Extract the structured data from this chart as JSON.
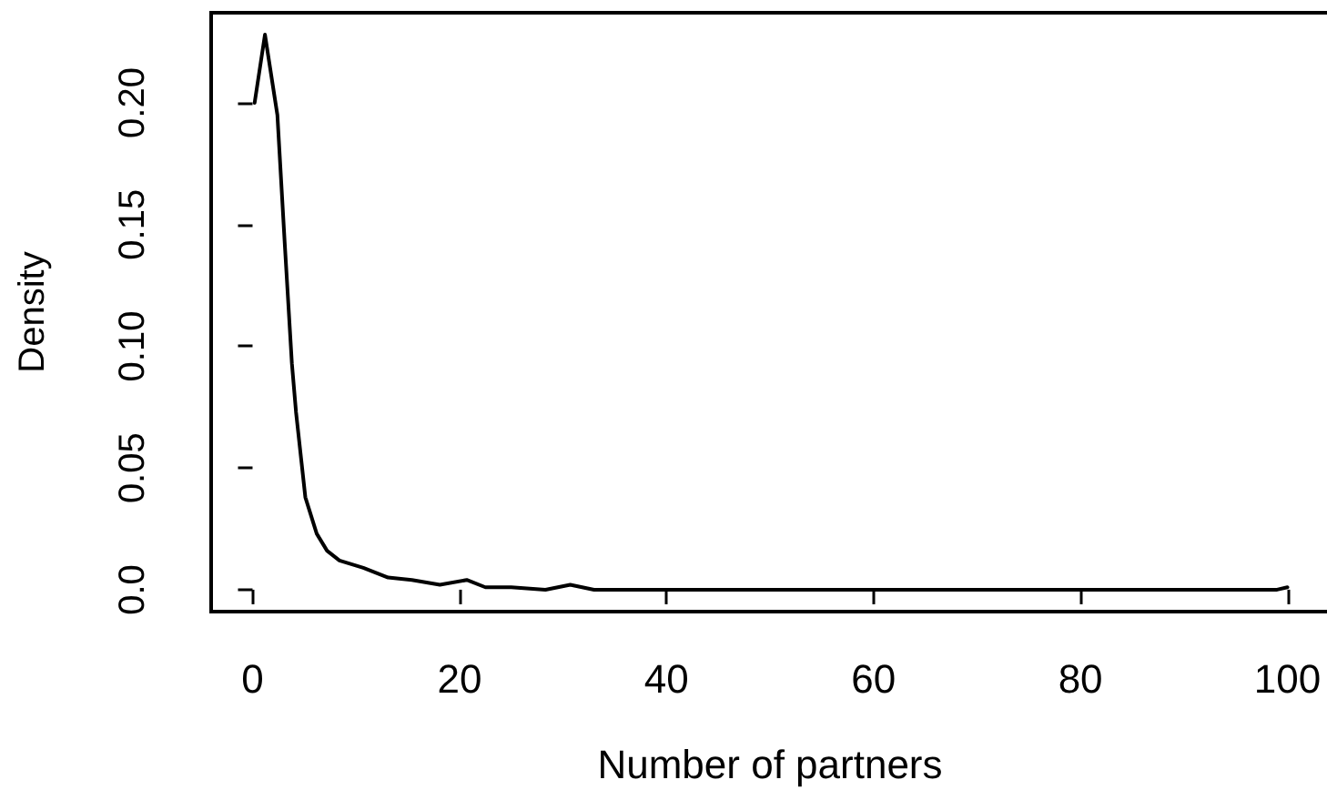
{
  "chart_data": {
    "type": "line",
    "xlabel": "Number of partners",
    "ylabel": "Density",
    "x": [
      0.2,
      1.2,
      2.4,
      3.1,
      3.8,
      4.2,
      5.1,
      6.2,
      7.2,
      8.4,
      10.7,
      13.1,
      15.4,
      18.1,
      20.7,
      22.5,
      25,
      28.3,
      30.7,
      33,
      40,
      50,
      60,
      70,
      80,
      90,
      99,
      100
    ],
    "values": [
      0.2,
      0.228,
      0.195,
      0.143,
      0.093,
      0.073,
      0.038,
      0.023,
      0.016,
      0.012,
      0.009,
      0.005,
      0.004,
      0.002,
      0.004,
      0.001,
      0.001,
      0,
      0.002,
      0,
      0,
      0,
      0,
      0,
      0,
      0,
      0,
      0.001
    ],
    "color": "#000000",
    "xlim": [
      -4,
      104
    ],
    "ylim": [
      -0.009,
      0.237
    ],
    "xticks": [
      0,
      20,
      40,
      60,
      80,
      100
    ],
    "yticks": [
      {
        "value": 0,
        "label": "0.0"
      },
      0.05,
      {
        "value": 0.1,
        "label": "0.10"
      },
      0.15,
      {
        "value": 0.2,
        "label": "0.20"
      }
    ],
    "marker": "none",
    "line_style": "solid"
  }
}
